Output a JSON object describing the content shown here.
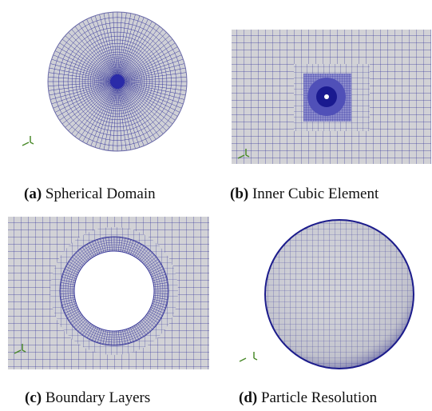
{
  "panels": [
    {
      "label": "(a)",
      "caption": "Spherical Domain"
    },
    {
      "label": "(b)",
      "caption": "Inner Cubic Element"
    },
    {
      "label": "(c)",
      "caption": "Boundary Layers"
    },
    {
      "label": "(d)",
      "caption": "Particle Resolution"
    }
  ]
}
